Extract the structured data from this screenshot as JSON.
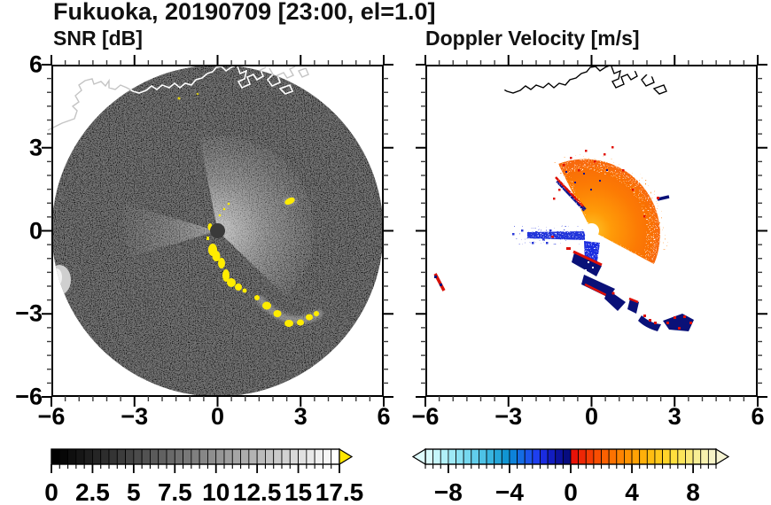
{
  "title": "Fukuoka, 20190709 [23:00, el=1.0]",
  "panels": [
    {
      "title": "SNR [dB]",
      "x_tick_labels": [
        "−6",
        "−3",
        "0",
        "3",
        "6"
      ],
      "x_tick_values": [
        -6,
        -3,
        0,
        3,
        6
      ],
      "y_tick_labels": [
        "6",
        "3",
        "0",
        "−3",
        "−6"
      ],
      "y_tick_values": [
        6,
        3,
        0,
        -3,
        -6
      ],
      "axis_range": {
        "xmin": -6,
        "xmax": 6,
        "ymin": -6,
        "ymax": 6
      }
    },
    {
      "title": "Doppler Velocity [m/s]",
      "x_tick_labels": [
        "−6",
        "−3",
        "0",
        "3",
        "6"
      ],
      "x_tick_values": [
        -6,
        -3,
        0,
        3,
        6
      ],
      "y_tick_labels": [],
      "y_tick_values": [],
      "axis_range": {
        "xmin": -6,
        "xmax": 6,
        "ymin": -6,
        "ymax": 6
      }
    }
  ],
  "colorbars": [
    {
      "name": "snr",
      "unit": "dB",
      "range": [
        0,
        17.5
      ],
      "tick_labels": [
        "0",
        "2.5",
        "5",
        "7.5",
        "10",
        "12.5",
        "15",
        "17.5"
      ],
      "tick_values": [
        0,
        2.5,
        5,
        7.5,
        10,
        12.5,
        15,
        17.5
      ],
      "arrow_left": null,
      "arrow_right": "#ffe600",
      "cells": [
        "#000000",
        "#070707",
        "#0f0f0f",
        "#161616",
        "#1e1e1e",
        "#252525",
        "#2d2d2d",
        "#343434",
        "#3c3c3c",
        "#434343",
        "#4b4b4b",
        "#525252",
        "#5a5a5a",
        "#616161",
        "#696969",
        "#707070",
        "#787878",
        "#7f7f7f",
        "#878787",
        "#8e8e8e",
        "#969696",
        "#9d9d9d",
        "#a5a5a5",
        "#acacac",
        "#b4b4b4",
        "#bbbbbb",
        "#c3c3c3",
        "#cacaca",
        "#d2d2d2",
        "#d9d9d9",
        "#e1e1e1",
        "#e8e8e8",
        "#f0f0f0",
        "#f7f7f7",
        "#ffffff"
      ]
    },
    {
      "name": "velocity",
      "unit": "m/s",
      "range": [
        -9.5,
        9.5
      ],
      "tick_labels": [
        "−8",
        "−4",
        "0",
        "4",
        "8"
      ],
      "tick_values": [
        -8,
        -4,
        0,
        4,
        8
      ],
      "arrow_left": "#dffcfd",
      "arrow_right": "#f6f4d3",
      "cells": [
        "#d9fbfd",
        "#c5f6fb",
        "#b1f0f8",
        "#9de9f6",
        "#89e1f3",
        "#75d8ef",
        "#61cdeb",
        "#4dc2e6",
        "#39b5e0",
        "#25a6da",
        "#1195d3",
        "#0d82da",
        "#146ce4",
        "#1b55ec",
        "#1e3ff0",
        "#1a2ce0",
        "#121dc0",
        "#0c129e",
        "#070c80",
        "#e81208",
        "#ee2705",
        "#f43b03",
        "#f94e02",
        "#fb6001",
        "#fd7201",
        "#fe8301",
        "#ff9302",
        "#ffa205",
        "#ffb00a",
        "#ffbd11",
        "#ffc91c",
        "#ffd42a",
        "#ffdf3d",
        "#fce55a",
        "#fae977",
        "#f8ee94",
        "#f7f1ae",
        "#f6f3c6"
      ]
    }
  ],
  "chart_data": [
    {
      "type": "heatmap",
      "subtype": "radar-ppi-scan",
      "title": "SNR [dB]",
      "site": "Fukuoka",
      "date": "20190709",
      "time": "23:00",
      "elevation": 1.0,
      "x_range": [
        -6,
        6
      ],
      "y_range": [
        -6,
        6
      ],
      "x_ticks": [
        -6,
        -3,
        0,
        3,
        6
      ],
      "y_ticks": [
        6,
        3,
        0,
        -3,
        -6
      ],
      "scan_radius": 6,
      "colorbar": {
        "min": 0,
        "max": 17.5,
        "label_step": 2.5,
        "cell_step": 0.5,
        "colormap": "black-to-white grayscale with yellow overflow arrow"
      },
      "features": [
        {
          "name": "background-speckle",
          "desc": "near-zero SNR noise filling the 6-unit scan circle",
          "approx_value": "0-2 dB"
        },
        {
          "name": "bright-fan",
          "desc": "enhanced SNR sector NE through SE of radar center fading with range",
          "approx_value": "4-10 dB",
          "center": [
            0,
            0
          ],
          "max_extent": 3.4
        },
        {
          "name": "west-fan",
          "desc": "weaker enhanced sector due west of center",
          "approx_value": "3-6 dB",
          "max_extent": 3.3
        },
        {
          "name": "shadow-spokes",
          "desc": "narrow blocked (black) radials toward NW and SW"
        },
        {
          "name": "saturated-echo-chain",
          "desc": "yellow >17.5 dB echoes arcing from center toward SE",
          "from": [
            -0.2,
            -0.7
          ],
          "to": [
            3.6,
            -3.0
          ]
        },
        {
          "name": "isolated-echo",
          "pos": [
            2.6,
            1.1
          ],
          "approx_value": ">17.5 dB"
        },
        {
          "name": "west-edge-echo",
          "pos": [
            -5.6,
            -1.8
          ],
          "approx_value": "12-16 dB"
        },
        {
          "name": "coastline",
          "desc": "Hakata Bay coastline with harbor piers crossing the top of the scan, drawn white over the disk and gray outside"
        }
      ]
    },
    {
      "type": "heatmap",
      "subtype": "radar-ppi-scan",
      "title": "Doppler Velocity [m/s]",
      "site": "Fukuoka",
      "date": "20190709",
      "time": "23:00",
      "elevation": 1.0,
      "x_range": [
        -6,
        6
      ],
      "y_range": [
        -6,
        6
      ],
      "x_ticks": [
        -6,
        -3,
        0,
        3,
        6
      ],
      "scan_radius": 6,
      "colorbar": {
        "min": -9.5,
        "max": 9.5,
        "label_step": 4,
        "cell_step": 0.5,
        "colormap": "pale-cyan to navy (negative), red to pale-yellow (positive), overflow arrows both ends"
      },
      "features": [
        {
          "name": "outbound-fan",
          "desc": "speckled positive velocities (red-orange, ~+2 to +6) in sector N through SE of center",
          "max_extent": 2.7
        },
        {
          "name": "inbound-band",
          "desc": "negative velocities (blue, ~-4 to -7) in narrow band due west of center",
          "from": [
            -2.8,
            -0.2
          ],
          "to": [
            -0.4,
            -0.1
          ]
        },
        {
          "name": "nw-couplet",
          "desc": "navy/red aliased streak toward NW",
          "from": [
            -1.3,
            1.9
          ],
          "to": [
            -0.3,
            0.8
          ]
        },
        {
          "name": "south-aliased-bands",
          "desc": "navy bands with red fringes (folded velocities) S to SE of center",
          "from": [
            -0.6,
            -0.8
          ],
          "to": [
            1.2,
            -2.9
          ]
        },
        {
          "name": "scattered-echo-arc",
          "desc": "navy+red echo patches in arc at lower right",
          "positions": [
            [
              1.5,
              -2.6
            ],
            [
              2.4,
              -3.2
            ],
            [
              3.2,
              -3.3
            ]
          ]
        },
        {
          "name": "isolated-echo",
          "pos": [
            2.6,
            1.1
          ]
        },
        {
          "name": "west-edge-echo",
          "pos": [
            -5.6,
            -1.8
          ]
        },
        {
          "name": "center-hole",
          "desc": "white data-free disk at radar location",
          "radius": 0.25
        },
        {
          "name": "coastline",
          "desc": "black Hakata Bay coastline with harbor piers across top of panel"
        }
      ]
    }
  ]
}
